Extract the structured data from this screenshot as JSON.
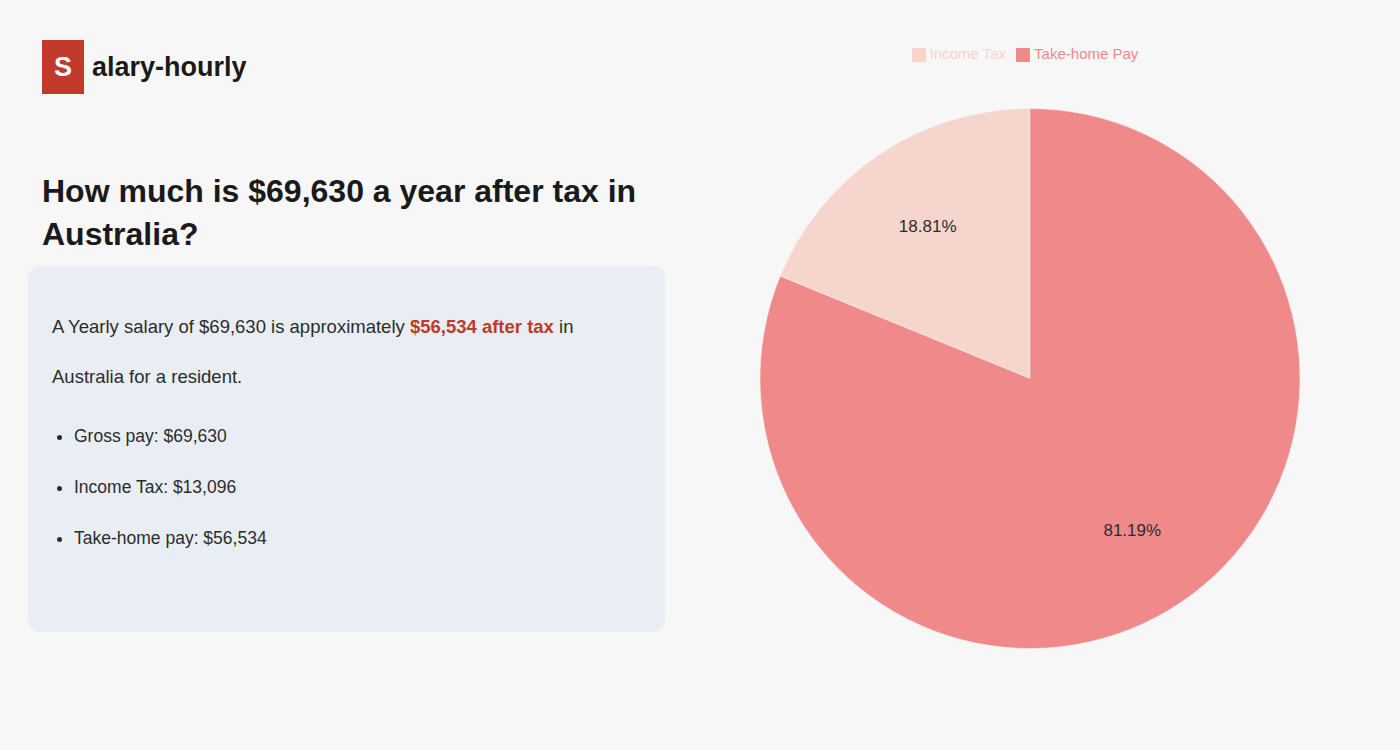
{
  "chart_data": {
    "type": "pie",
    "title": "How much is $69,630 a year after tax in\nAustralia?",
    "categories": [
      "Income Tax",
      "Take-home Pay"
    ],
    "values": [
      18.81,
      81.19
    ],
    "value_labels": [
      "18.81%",
      "81.19%"
    ],
    "colors": [
      "#f5d5cc",
      "#f08a8a"
    ],
    "data_labels": true,
    "legend": "top",
    "annotations": [
      {
        "text": "S",
        "color": "#c0392b"
      },
      {
        "text": "alary-hourly"
      },
      {
        "text": "A Yearly salary of $69,630 is approximately "
      },
      {
        "text": "$56,534 after tax",
        "color": "#c0392b"
      },
      {
        "text": " in"
      },
      {
        "text": "Australia for a resident."
      },
      {
        "text": "Gross pay: $69,630"
      },
      {
        "text": "Income Tax: $13,096"
      },
      {
        "text": "Take-home pay: $56,534"
      }
    ]
  }
}
